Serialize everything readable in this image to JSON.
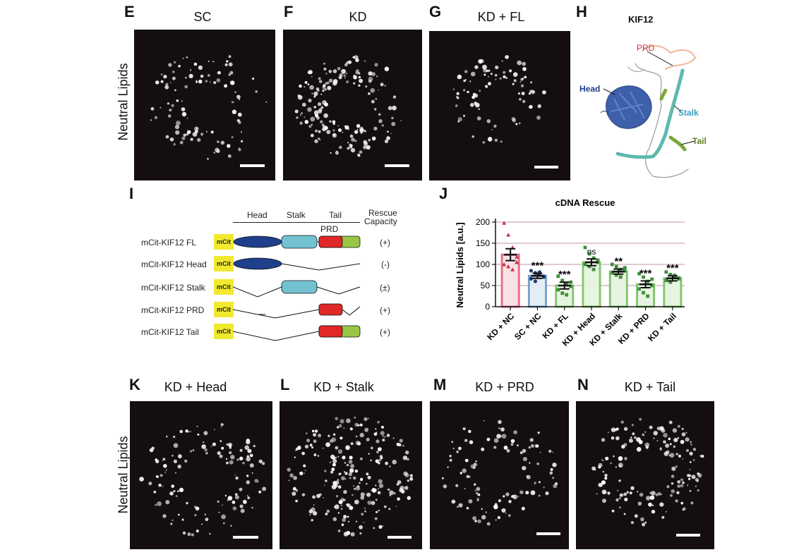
{
  "panels": {
    "E": {
      "letter": "E",
      "title": "SC"
    },
    "F": {
      "letter": "F",
      "title": "KD"
    },
    "G": {
      "letter": "G",
      "title": "KD + FL"
    },
    "H": {
      "letter": "H",
      "title": "KIF12"
    },
    "I": {
      "letter": "I"
    },
    "J": {
      "letter": "J"
    },
    "K": {
      "letter": "K",
      "title": "KD + Head"
    },
    "L": {
      "letter": "L",
      "title": "KD + Stalk"
    },
    "M": {
      "letter": "M",
      "title": "KD + PRD"
    },
    "N": {
      "letter": "N",
      "title": "KD + Tail"
    }
  },
  "side_label": "Neutral Lipids",
  "structure_labels": {
    "prd": "PRD",
    "head": "Head",
    "stalk": "Stalk",
    "tail": "Tail"
  },
  "colors": {
    "head": "#1e3f8a",
    "stalk": "#72c2d2",
    "prd": "#e02828",
    "tail": "#9ac646",
    "mcit": "#f2e830",
    "bar_nc": "#e88a9c",
    "bar_sc": "#8fb6d8",
    "bar_green": "#9ed38a"
  },
  "domain_diagram": {
    "header": {
      "head": "Head",
      "stalk": "Stalk",
      "tail": "Tail",
      "prd": "PRD",
      "rescue": "Rescue",
      "capacity": "Capacity"
    },
    "tag": "mCit",
    "rows": [
      {
        "name": "mCit-KIF12 FL",
        "rescue": "(+)"
      },
      {
        "name": "mCit-KIF12 Head",
        "rescue": "(-)"
      },
      {
        "name": "mCit-KIF12 Stalk",
        "rescue": "(±)"
      },
      {
        "name": "mCit-KIF12 PRD",
        "rescue": "(+)"
      },
      {
        "name": "mCit-KIF12 Tail",
        "rescue": "(+)"
      }
    ]
  },
  "chart_data": {
    "type": "bar",
    "title": "cDNA Rescue",
    "ylabel": "Neutral Lipids [a.u.]",
    "xlabel": "",
    "ylim": [
      0,
      200
    ],
    "yticks": [
      0,
      50,
      100,
      150,
      200
    ],
    "grid": true,
    "categories": [
      "KD + NC",
      "SC + NC",
      "KD + FL",
      "KD + Head",
      "KD + Stalk",
      "KD + PRD",
      "KD + Tail"
    ],
    "values": [
      123,
      73,
      50,
      105,
      83,
      53,
      67
    ],
    "errors": [
      14,
      6,
      8,
      8,
      6,
      8,
      6
    ],
    "significance": [
      "",
      "***",
      "***",
      "ns",
      "**",
      "***",
      "***"
    ],
    "points": [
      [
        198,
        170,
        140,
        118,
        100,
        95,
        88,
        105
      ],
      [
        85,
        80,
        75,
        70,
        66,
        60,
        82,
        72
      ],
      [
        72,
        62,
        55,
        48,
        40,
        32,
        28,
        58
      ],
      [
        140,
        125,
        115,
        105,
        100,
        95,
        88,
        110
      ],
      [
        100,
        95,
        88,
        85,
        80,
        75,
        70,
        92
      ],
      [
        78,
        70,
        60,
        50,
        42,
        33,
        25,
        65
      ],
      [
        82,
        76,
        70,
        66,
        62,
        58,
        74,
        68
      ]
    ]
  }
}
